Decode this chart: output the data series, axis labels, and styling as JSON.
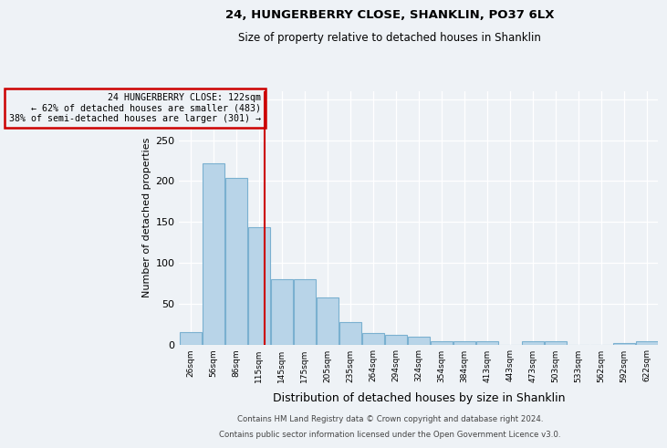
{
  "title1": "24, HUNGERBERRY CLOSE, SHANKLIN, PO37 6LX",
  "title2": "Size of property relative to detached houses in Shanklin",
  "xlabel": "Distribution of detached houses by size in Shanklin",
  "ylabel": "Number of detached properties",
  "categories": [
    "26sqm",
    "56sqm",
    "86sqm",
    "115sqm",
    "145sqm",
    "175sqm",
    "205sqm",
    "235sqm",
    "264sqm",
    "294sqm",
    "324sqm",
    "354sqm",
    "384sqm",
    "413sqm",
    "443sqm",
    "473sqm",
    "503sqm",
    "533sqm",
    "562sqm",
    "592sqm",
    "622sqm"
  ],
  "values": [
    15,
    222,
    204,
    144,
    80,
    80,
    57,
    27,
    14,
    12,
    9,
    4,
    4,
    4,
    0,
    4,
    4,
    0,
    0,
    2,
    4
  ],
  "bar_color": "#b8d4e8",
  "bar_edge_color": "#7ab0d0",
  "annotation_line1": "24 HUNGERBERRY CLOSE: 122sqm",
  "annotation_line2": "← 62% of detached houses are smaller (483)",
  "annotation_line3": "38% of semi-detached houses are larger (301) →",
  "annotation_box_color": "#cc0000",
  "ref_line_color": "#cc0000",
  "ylim": [
    0,
    310
  ],
  "footnote1": "Contains HM Land Registry data © Crown copyright and database right 2024.",
  "footnote2": "Contains public sector information licensed under the Open Government Licence v3.0.",
  "bg_color": "#eef2f6"
}
